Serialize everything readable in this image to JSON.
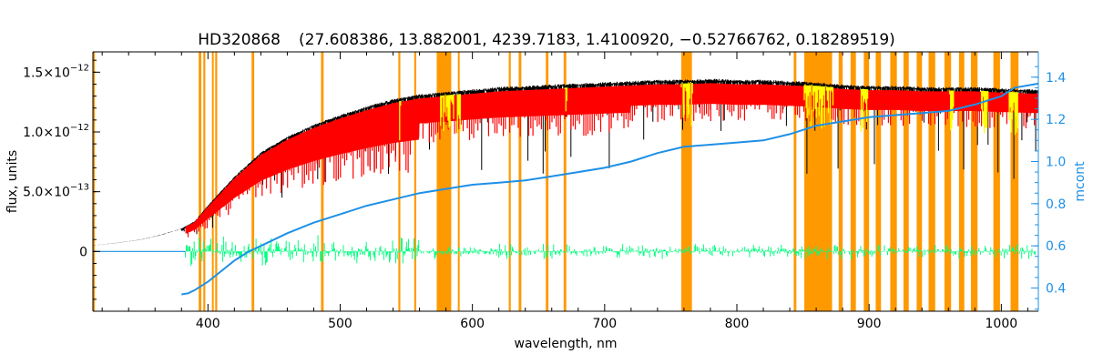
{
  "chart_data": {
    "type": "line",
    "title": "HD320868",
    "subtitle": "(27.608386, 13.882001, 4239.7183, 1.4100920, −0.52766762, 0.18289519)",
    "xlabel": "wavelength, nm",
    "ylabel": "flux, units",
    "y2label": "mcont",
    "xlim": [
      313,
      1028
    ],
    "ylim": [
      -5e-13,
      1.67e-12
    ],
    "y2lim": [
      0.29,
      1.52
    ],
    "x_ticks": [
      400,
      500,
      600,
      700,
      800,
      900,
      1000
    ],
    "y_ticks": [
      {
        "value": 0,
        "label": "0",
        "exp": ""
      },
      {
        "value": 5e-13,
        "label": "5.0×10",
        "exp": "−13"
      },
      {
        "value": 1e-12,
        "label": "1.0×10",
        "exp": "−12"
      },
      {
        "value": 1.5e-12,
        "label": "1.5×10",
        "exp": "−12"
      }
    ],
    "y2_ticks": [
      "0.4",
      "0.6",
      "0.8",
      "1.0",
      "1.2",
      "1.4"
    ],
    "colors": {
      "observed": "#000000",
      "model": "#ff0000",
      "flagged": "#ffff00",
      "residual": "#00ff7f",
      "continuum": "#1e90e6",
      "masks": "#ff9900",
      "axes": "#000000",
      "right_axis": "#1e90e6"
    },
    "series": [
      {
        "role": "observed flux",
        "x": [
          313,
          330,
          350,
          365,
          380,
          390,
          400,
          420,
          440,
          460,
          480,
          500,
          520,
          540,
          560,
          580,
          600,
          620,
          640,
          660,
          680,
          700,
          720,
          740,
          760,
          780,
          800,
          820,
          840,
          860,
          880,
          900,
          920,
          940,
          960,
          980,
          1000,
          1028
        ],
        "y": [
          5e-14,
          7e-14,
          1e-13,
          1.4e-13,
          1.9e-13,
          2.5e-13,
          3.8e-13,
          6.2e-13,
          8.2e-13,
          9.5e-13,
          1.05e-12,
          1.13e-12,
          1.2e-12,
          1.26e-12,
          1.3e-12,
          1.32e-12,
          1.34e-12,
          1.36e-12,
          1.37e-12,
          1.38e-12,
          1.39e-12,
          1.4e-12,
          1.41e-12,
          1.42e-12,
          1.42e-12,
          1.43e-12,
          1.42e-12,
          1.42e-12,
          1.41e-12,
          1.4e-12,
          1.38e-12,
          1.37e-12,
          1.37e-12,
          1.36e-12,
          1.36e-12,
          1.36e-12,
          1.35e-12,
          1.34e-12
        ]
      },
      {
        "role": "continuum (mcont, right axis)",
        "x": [
          380,
          385,
          390,
          400,
          410,
          420,
          430,
          440,
          460,
          480,
          500,
          520,
          540,
          560,
          580,
          600,
          620,
          640,
          660,
          680,
          700,
          720,
          740,
          760,
          780,
          800,
          820,
          840,
          860,
          880,
          900,
          920,
          940,
          960,
          980,
          1000,
          1010,
          1028
        ],
        "y": [
          0.37,
          0.375,
          0.39,
          0.43,
          0.48,
          0.53,
          0.57,
          0.6,
          0.66,
          0.71,
          0.75,
          0.79,
          0.82,
          0.85,
          0.87,
          0.89,
          0.9,
          0.91,
          0.93,
          0.95,
          0.97,
          1.0,
          1.04,
          1.07,
          1.08,
          1.09,
          1.1,
          1.13,
          1.17,
          1.19,
          1.21,
          1.22,
          1.23,
          1.24,
          1.27,
          1.31,
          1.35,
          1.37
        ]
      }
    ],
    "masked_bands_nm": [
      [
        313,
        314.5
      ],
      [
        393,
        395
      ],
      [
        396.5,
        398
      ],
      [
        403,
        404
      ],
      [
        405.5,
        407
      ],
      [
        433,
        435
      ],
      [
        485.5,
        487.5
      ],
      [
        544,
        545.5
      ],
      [
        556,
        557.5
      ],
      [
        573,
        584
      ],
      [
        589,
        590
      ],
      [
        627.5,
        629
      ],
      [
        635,
        637
      ],
      [
        655.5,
        657.5
      ],
      [
        669,
        671
      ],
      [
        758,
        766
      ],
      [
        843,
        845
      ],
      [
        851,
        872
      ],
      [
        877,
        880
      ],
      [
        886,
        890
      ],
      [
        896,
        900
      ],
      [
        905,
        909
      ],
      [
        916,
        921
      ],
      [
        926,
        930
      ],
      [
        936,
        940
      ],
      [
        945,
        950
      ],
      [
        957,
        962
      ],
      [
        968,
        972
      ],
      [
        977,
        982
      ],
      [
        994,
        999
      ],
      [
        1007,
        1013
      ]
    ],
    "grid": false,
    "legend": "none"
  }
}
